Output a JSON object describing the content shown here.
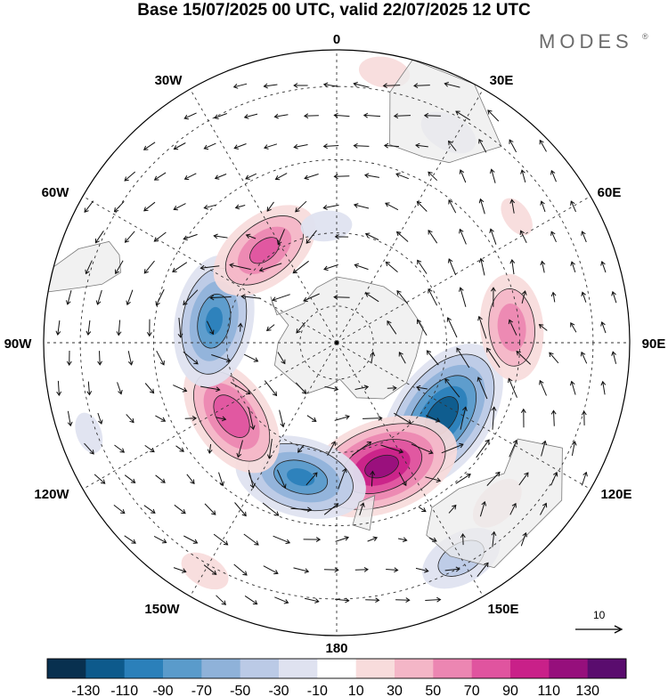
{
  "header": {
    "title": "Base 15/07/2025 00 UTC, valid 22/07/2025 12 UTC",
    "brand": "MODES",
    "brand_mark": "®"
  },
  "map": {
    "projection": "south-polar-stereographic",
    "longitude_labels": [
      "0",
      "30E",
      "60E",
      "90E",
      "120E",
      "150E",
      "180",
      "150W",
      "120W",
      "90W",
      "60W",
      "30W"
    ],
    "colors": {
      "land": "#ececec",
      "coast": "#7a7a7a",
      "graticule": "#333333",
      "vectors": "#111111"
    },
    "anomaly_centers": [
      {
        "lon": 125,
        "colat": 35,
        "value": -125
      },
      {
        "lon": 160,
        "colat": 36,
        "value": 118
      },
      {
        "lon": 85,
        "colat": 48,
        "value": 70
      },
      {
        "lon": -165,
        "colat": 38,
        "value": -95
      },
      {
        "lon": -125,
        "colat": 35,
        "value": 90
      },
      {
        "lon": -80,
        "colat": 34,
        "value": -95
      },
      {
        "lon": -38,
        "colat": 32,
        "value": 80
      },
      {
        "lon": -5,
        "colat": 32,
        "value": -25
      },
      {
        "lon": 10,
        "colat": 75,
        "value": 25
      },
      {
        "lon": 28,
        "colat": 65,
        "value": -30
      },
      {
        "lon": 150,
        "colat": 68,
        "value": -50
      },
      {
        "lon": 135,
        "colat": 62,
        "value": 30
      },
      {
        "lon": -110,
        "colat": 72,
        "value": -20
      },
      {
        "lon": -150,
        "colat": 72,
        "value": 25
      },
      {
        "lon": 55,
        "colat": 60,
        "value": 20
      }
    ]
  },
  "reference_vector": {
    "value": "10"
  },
  "legend": {
    "colors": [
      "#08304f",
      "#0d5a8c",
      "#2b80ba",
      "#5a9bcb",
      "#8fb2d9",
      "#bbcae6",
      "#dfe2f0",
      "#ffffff",
      "#f8dcdc",
      "#f4b6c7",
      "#ec86b2",
      "#e0549f",
      "#c92089",
      "#960f7c",
      "#5a0c6e"
    ],
    "ticks": [
      "-130",
      "-110",
      "-90",
      "-70",
      "-50",
      "-30",
      "-10",
      "10",
      "30",
      "50",
      "70",
      "90",
      "110",
      "130"
    ]
  }
}
